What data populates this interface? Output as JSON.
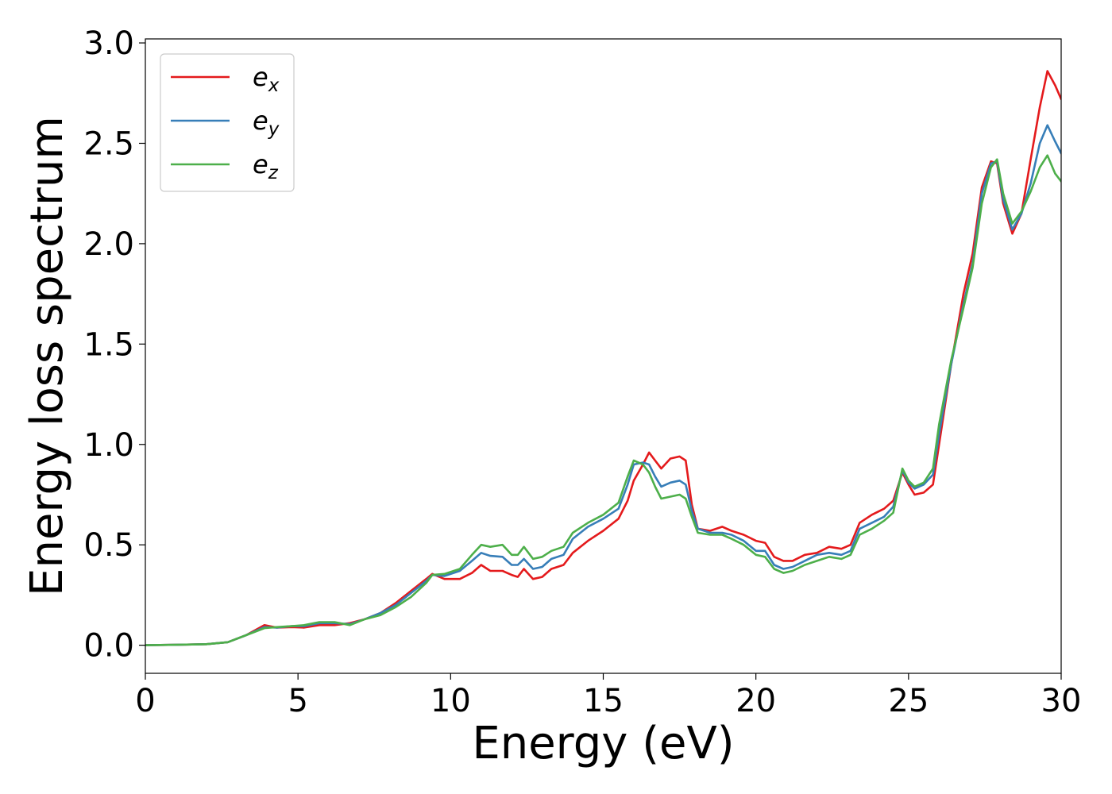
{
  "chart_data": {
    "type": "line",
    "title": "",
    "xlabel": "Energy (eV)",
    "ylabel": "Energy loss spectrum",
    "xlim": [
      0,
      30
    ],
    "ylim": [
      -0.14,
      3.02
    ],
    "x_ticks": [
      0,
      5,
      10,
      15,
      20,
      25,
      30
    ],
    "x_tick_labels": [
      "0",
      "5",
      "10",
      "15",
      "20",
      "25",
      "30"
    ],
    "y_ticks": [
      0.0,
      0.5,
      1.0,
      1.5,
      2.0,
      2.5,
      3.0
    ],
    "y_tick_labels": [
      "0.0",
      "0.5",
      "1.0",
      "1.5",
      "2.0",
      "2.5",
      "3.0"
    ],
    "grid": false,
    "legend": {
      "position": "top-left"
    },
    "series": [
      {
        "name": "e_x",
        "label_base": "e",
        "label_sub": "x",
        "color": "#e41a1c",
        "points": [
          [
            0,
            0
          ],
          [
            1,
            0.002
          ],
          [
            2,
            0.005
          ],
          [
            2.7,
            0.015
          ],
          [
            3.3,
            0.05
          ],
          [
            3.9,
            0.1
          ],
          [
            4.3,
            0.088
          ],
          [
            4.8,
            0.09
          ],
          [
            5.2,
            0.088
          ],
          [
            5.7,
            0.1
          ],
          [
            6.2,
            0.1
          ],
          [
            6.7,
            0.11
          ],
          [
            7.2,
            0.13
          ],
          [
            7.7,
            0.16
          ],
          [
            8.2,
            0.21
          ],
          [
            8.7,
            0.27
          ],
          [
            9.2,
            0.33
          ],
          [
            9.4,
            0.355
          ],
          [
            9.8,
            0.33
          ],
          [
            10.3,
            0.33
          ],
          [
            10.7,
            0.36
          ],
          [
            11.0,
            0.4
          ],
          [
            11.3,
            0.37
          ],
          [
            11.7,
            0.37
          ],
          [
            12.0,
            0.35
          ],
          [
            12.2,
            0.34
          ],
          [
            12.4,
            0.38
          ],
          [
            12.7,
            0.33
          ],
          [
            13.0,
            0.34
          ],
          [
            13.3,
            0.38
          ],
          [
            13.7,
            0.4
          ],
          [
            14.0,
            0.46
          ],
          [
            14.5,
            0.52
          ],
          [
            15.0,
            0.57
          ],
          [
            15.5,
            0.63
          ],
          [
            15.8,
            0.72
          ],
          [
            16.0,
            0.82
          ],
          [
            16.3,
            0.9
          ],
          [
            16.5,
            0.96
          ],
          [
            16.7,
            0.92
          ],
          [
            16.9,
            0.88
          ],
          [
            17.2,
            0.93
          ],
          [
            17.5,
            0.94
          ],
          [
            17.7,
            0.92
          ],
          [
            17.9,
            0.7
          ],
          [
            18.1,
            0.58
          ],
          [
            18.5,
            0.57
          ],
          [
            18.9,
            0.59
          ],
          [
            19.2,
            0.57
          ],
          [
            19.6,
            0.55
          ],
          [
            20.0,
            0.52
          ],
          [
            20.3,
            0.51
          ],
          [
            20.6,
            0.44
          ],
          [
            20.9,
            0.42
          ],
          [
            21.2,
            0.42
          ],
          [
            21.6,
            0.45
          ],
          [
            22.0,
            0.46
          ],
          [
            22.4,
            0.49
          ],
          [
            22.8,
            0.48
          ],
          [
            23.1,
            0.5
          ],
          [
            23.4,
            0.61
          ],
          [
            23.8,
            0.65
          ],
          [
            24.2,
            0.68
          ],
          [
            24.5,
            0.72
          ],
          [
            24.8,
            0.86
          ],
          [
            25.0,
            0.8
          ],
          [
            25.2,
            0.75
          ],
          [
            25.5,
            0.76
          ],
          [
            25.8,
            0.8
          ],
          [
            26.0,
            1.0
          ],
          [
            26.4,
            1.4
          ],
          [
            26.8,
            1.75
          ],
          [
            27.1,
            1.95
          ],
          [
            27.4,
            2.28
          ],
          [
            27.7,
            2.41
          ],
          [
            27.9,
            2.4
          ],
          [
            28.1,
            2.2
          ],
          [
            28.4,
            2.05
          ],
          [
            28.7,
            2.15
          ],
          [
            29.0,
            2.42
          ],
          [
            29.3,
            2.68
          ],
          [
            29.55,
            2.86
          ],
          [
            29.8,
            2.79
          ],
          [
            30.0,
            2.72
          ]
        ]
      },
      {
        "name": "e_y",
        "label_base": "e",
        "label_sub": "y",
        "color": "#377eb8",
        "points": [
          [
            0,
            0
          ],
          [
            1,
            0.002
          ],
          [
            2,
            0.005
          ],
          [
            2.7,
            0.015
          ],
          [
            3.3,
            0.05
          ],
          [
            3.9,
            0.09
          ],
          [
            4.3,
            0.088
          ],
          [
            4.8,
            0.095
          ],
          [
            5.2,
            0.095
          ],
          [
            5.7,
            0.11
          ],
          [
            6.2,
            0.11
          ],
          [
            6.7,
            0.105
          ],
          [
            7.2,
            0.13
          ],
          [
            7.7,
            0.16
          ],
          [
            8.2,
            0.2
          ],
          [
            8.7,
            0.26
          ],
          [
            9.2,
            0.32
          ],
          [
            9.4,
            0.35
          ],
          [
            9.8,
            0.345
          ],
          [
            10.3,
            0.37
          ],
          [
            10.7,
            0.42
          ],
          [
            11.0,
            0.46
          ],
          [
            11.3,
            0.445
          ],
          [
            11.7,
            0.44
          ],
          [
            12.0,
            0.4
          ],
          [
            12.2,
            0.4
          ],
          [
            12.4,
            0.43
          ],
          [
            12.7,
            0.38
          ],
          [
            13.0,
            0.39
          ],
          [
            13.3,
            0.43
          ],
          [
            13.7,
            0.45
          ],
          [
            14.0,
            0.53
          ],
          [
            14.5,
            0.59
          ],
          [
            15.0,
            0.63
          ],
          [
            15.5,
            0.68
          ],
          [
            15.8,
            0.8
          ],
          [
            16.0,
            0.9
          ],
          [
            16.3,
            0.91
          ],
          [
            16.5,
            0.9
          ],
          [
            16.7,
            0.84
          ],
          [
            16.9,
            0.79
          ],
          [
            17.2,
            0.81
          ],
          [
            17.5,
            0.82
          ],
          [
            17.7,
            0.8
          ],
          [
            17.9,
            0.67
          ],
          [
            18.1,
            0.58
          ],
          [
            18.5,
            0.56
          ],
          [
            18.9,
            0.56
          ],
          [
            19.2,
            0.55
          ],
          [
            19.6,
            0.52
          ],
          [
            20.0,
            0.47
          ],
          [
            20.3,
            0.47
          ],
          [
            20.6,
            0.4
          ],
          [
            20.9,
            0.38
          ],
          [
            21.2,
            0.39
          ],
          [
            21.6,
            0.42
          ],
          [
            22.0,
            0.45
          ],
          [
            22.4,
            0.46
          ],
          [
            22.8,
            0.45
          ],
          [
            23.1,
            0.47
          ],
          [
            23.4,
            0.58
          ],
          [
            23.8,
            0.61
          ],
          [
            24.2,
            0.64
          ],
          [
            24.5,
            0.69
          ],
          [
            24.8,
            0.87
          ],
          [
            25.0,
            0.81
          ],
          [
            25.2,
            0.78
          ],
          [
            25.5,
            0.8
          ],
          [
            25.8,
            0.85
          ],
          [
            26.0,
            1.05
          ],
          [
            26.4,
            1.4
          ],
          [
            26.8,
            1.7
          ],
          [
            27.1,
            1.9
          ],
          [
            27.4,
            2.25
          ],
          [
            27.7,
            2.4
          ],
          [
            27.9,
            2.41
          ],
          [
            28.1,
            2.22
          ],
          [
            28.4,
            2.07
          ],
          [
            28.7,
            2.15
          ],
          [
            29.0,
            2.3
          ],
          [
            29.3,
            2.5
          ],
          [
            29.55,
            2.59
          ],
          [
            29.8,
            2.51
          ],
          [
            30.0,
            2.45
          ]
        ]
      },
      {
        "name": "e_z",
        "label_base": "e",
        "label_sub": "z",
        "color": "#4daf4a",
        "points": [
          [
            0,
            0
          ],
          [
            1,
            0.002
          ],
          [
            2,
            0.005
          ],
          [
            2.7,
            0.015
          ],
          [
            3.3,
            0.05
          ],
          [
            3.9,
            0.085
          ],
          [
            4.3,
            0.09
          ],
          [
            4.8,
            0.095
          ],
          [
            5.2,
            0.1
          ],
          [
            5.7,
            0.115
          ],
          [
            6.2,
            0.115
          ],
          [
            6.7,
            0.1
          ],
          [
            7.2,
            0.13
          ],
          [
            7.7,
            0.15
          ],
          [
            8.2,
            0.19
          ],
          [
            8.7,
            0.24
          ],
          [
            9.2,
            0.31
          ],
          [
            9.4,
            0.35
          ],
          [
            9.8,
            0.355
          ],
          [
            10.3,
            0.38
          ],
          [
            10.7,
            0.45
          ],
          [
            11.0,
            0.5
          ],
          [
            11.3,
            0.49
          ],
          [
            11.7,
            0.5
          ],
          [
            12.0,
            0.45
          ],
          [
            12.2,
            0.45
          ],
          [
            12.4,
            0.49
          ],
          [
            12.7,
            0.43
          ],
          [
            13.0,
            0.44
          ],
          [
            13.3,
            0.47
          ],
          [
            13.7,
            0.49
          ],
          [
            14.0,
            0.56
          ],
          [
            14.5,
            0.61
          ],
          [
            15.0,
            0.65
          ],
          [
            15.5,
            0.71
          ],
          [
            15.8,
            0.84
          ],
          [
            16.0,
            0.92
          ],
          [
            16.3,
            0.9
          ],
          [
            16.5,
            0.86
          ],
          [
            16.7,
            0.79
          ],
          [
            16.9,
            0.73
          ],
          [
            17.2,
            0.74
          ],
          [
            17.5,
            0.75
          ],
          [
            17.7,
            0.73
          ],
          [
            17.9,
            0.64
          ],
          [
            18.1,
            0.56
          ],
          [
            18.5,
            0.55
          ],
          [
            18.9,
            0.55
          ],
          [
            19.2,
            0.53
          ],
          [
            19.6,
            0.5
          ],
          [
            20.0,
            0.45
          ],
          [
            20.3,
            0.44
          ],
          [
            20.6,
            0.38
          ],
          [
            20.9,
            0.36
          ],
          [
            21.2,
            0.37
          ],
          [
            21.6,
            0.4
          ],
          [
            22.0,
            0.42
          ],
          [
            22.4,
            0.44
          ],
          [
            22.8,
            0.43
          ],
          [
            23.1,
            0.45
          ],
          [
            23.4,
            0.55
          ],
          [
            23.8,
            0.58
          ],
          [
            24.2,
            0.62
          ],
          [
            24.5,
            0.66
          ],
          [
            24.8,
            0.88
          ],
          [
            25.0,
            0.82
          ],
          [
            25.2,
            0.79
          ],
          [
            25.5,
            0.81
          ],
          [
            25.8,
            0.88
          ],
          [
            26.0,
            1.1
          ],
          [
            26.4,
            1.42
          ],
          [
            26.8,
            1.68
          ],
          [
            27.1,
            1.88
          ],
          [
            27.4,
            2.2
          ],
          [
            27.7,
            2.38
          ],
          [
            27.9,
            2.42
          ],
          [
            28.1,
            2.25
          ],
          [
            28.4,
            2.1
          ],
          [
            28.7,
            2.16
          ],
          [
            29.0,
            2.26
          ],
          [
            29.3,
            2.38
          ],
          [
            29.55,
            2.44
          ],
          [
            29.8,
            2.35
          ],
          [
            30.0,
            2.31
          ]
        ]
      }
    ]
  }
}
